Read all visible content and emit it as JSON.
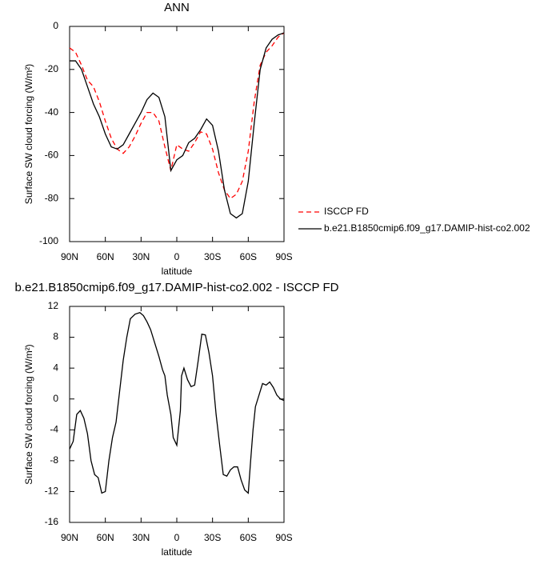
{
  "chart_data": [
    {
      "type": "line",
      "title": "ANN",
      "x_label": "latitude",
      "y_label": "Surface SW cloud forcing (W/m²)",
      "x": [
        90,
        85,
        80,
        75,
        70,
        65,
        60,
        55,
        50,
        45,
        40,
        35,
        30,
        25,
        20,
        15,
        10,
        5,
        0,
        -5,
        -10,
        -15,
        -20,
        -25,
        -30,
        -35,
        -40,
        -45,
        -50,
        -55,
        -60,
        -65,
        -70,
        -75,
        -80,
        -85,
        -90
      ],
      "xlim": [
        90,
        -90
      ],
      "xticks": [
        {
          "value": 90,
          "label": "90N"
        },
        {
          "value": 60,
          "label": "60N"
        },
        {
          "value": 30,
          "label": "30N"
        },
        0,
        {
          "value": -30,
          "label": "30S"
        },
        {
          "value": -60,
          "label": "60S"
        },
        {
          "value": -90,
          "label": "90S"
        }
      ],
      "ylim": [
        -100,
        0
      ],
      "yticks": [
        -100,
        -80,
        -60,
        -40,
        -20,
        0
      ],
      "series": [
        {
          "name": "ISCCP FD",
          "color": "#ff0000",
          "dash": true,
          "values": [
            -10,
            -12,
            -18,
            -25,
            -28,
            -35,
            -44,
            -52,
            -57,
            -59,
            -56,
            -51,
            -45,
            -40,
            -40,
            -44,
            -56,
            -67,
            -55,
            -57,
            -58,
            -54,
            -49,
            -50,
            -57,
            -68,
            -76,
            -80,
            -78,
            -72,
            -58,
            -35,
            -18,
            -12,
            -9,
            -5,
            -3
          ]
        },
        {
          "name": "b.e21.B1850cmip6.f09_g17.DAMIP-hist-co2.002",
          "color": "#000000",
          "dash": false,
          "values": [
            -16,
            -16,
            -20,
            -28,
            -36,
            -42,
            -50,
            -56,
            -57,
            -55,
            -50,
            -45,
            -40,
            -34,
            -31,
            -33,
            -42,
            -67,
            -62,
            -60,
            -54,
            -52,
            -48,
            -43,
            -46,
            -58,
            -76,
            -87,
            -89,
            -87,
            -72,
            -45,
            -20,
            -10,
            -6,
            -4,
            -3
          ]
        }
      ]
    },
    {
      "type": "line",
      "title": "b.e21.B1850cmip6.f09_g17.DAMIP-hist-co2.002 - ISCCP FD",
      "x_label": "latitude",
      "y_label": "Surface SW cloud forcing (W/m²)",
      "x": [
        90,
        87,
        84,
        81,
        78,
        75,
        72,
        69,
        66,
        63,
        60,
        57,
        54,
        51,
        48,
        45,
        42,
        39,
        35,
        31,
        28,
        25,
        22,
        19,
        15,
        12,
        10,
        8,
        5,
        3,
        0,
        -3,
        -4,
        -6,
        -9,
        -12,
        -15,
        -18,
        -21,
        -24,
        -27,
        -30,
        -33,
        -36,
        -39,
        -42,
        -45,
        -48,
        -51,
        -54,
        -57,
        -60,
        -62,
        -64,
        -66,
        -69,
        -72,
        -75,
        -78,
        -81,
        -84,
        -87,
        -90
      ],
      "xlim": [
        90,
        -90
      ],
      "xticks": [
        {
          "value": 90,
          "label": "90N"
        },
        {
          "value": 60,
          "label": "60N"
        },
        {
          "value": 30,
          "label": "30N"
        },
        0,
        {
          "value": -30,
          "label": "30S"
        },
        {
          "value": -60,
          "label": "60S"
        },
        {
          "value": -90,
          "label": "90S"
        }
      ],
      "ylim": [
        -16,
        12
      ],
      "yticks": [
        -16,
        -12,
        -8,
        -4,
        0,
        4,
        8,
        12
      ],
      "series": [
        {
          "color": "#000000",
          "dash": false,
          "values": [
            -6.5,
            -5.5,
            -2,
            -1.5,
            -2.5,
            -4.5,
            -8,
            -9.8,
            -10.2,
            -12.2,
            -12,
            -8,
            -5,
            -3,
            1,
            5,
            8,
            10.4,
            11,
            11.2,
            10.8,
            10,
            9,
            7.5,
            5.5,
            3.8,
            3,
            0.5,
            -2,
            -5,
            -6,
            -1.5,
            3,
            4,
            2.5,
            1.6,
            1.8,
            5,
            8.4,
            8.3,
            6,
            3,
            -2,
            -6,
            -9.8,
            -10,
            -9.2,
            -8.8,
            -8.8,
            -10.5,
            -11.8,
            -12.2,
            -8,
            -4,
            -1,
            0.5,
            2,
            1.8,
            2.2,
            1.5,
            0.5,
            0,
            -0.2
          ]
        }
      ]
    }
  ]
}
